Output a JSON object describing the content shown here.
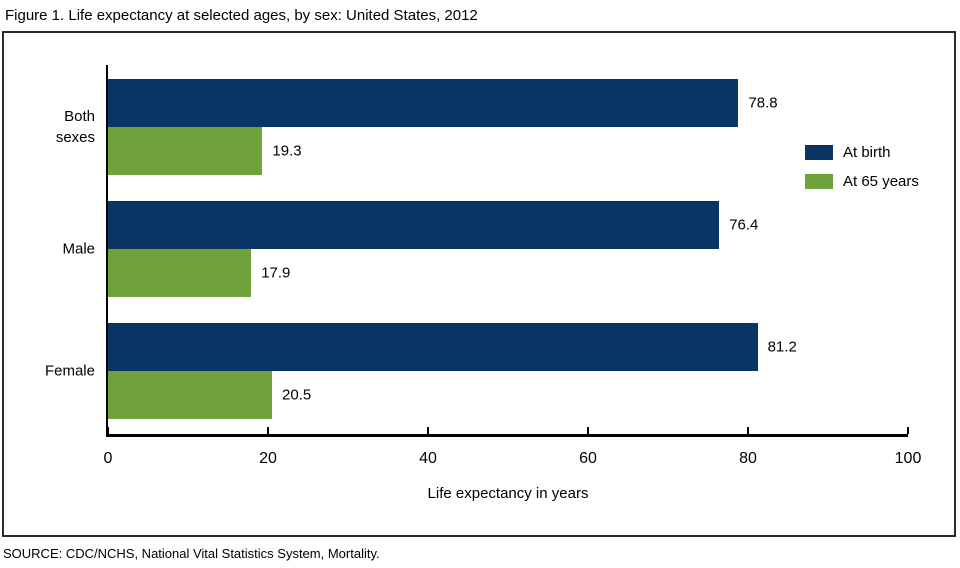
{
  "title": "Figure 1. Life expectancy at selected ages, by sex: United States, 2012",
  "source": "SOURCE: CDC/NCHS, National Vital Statistics System, Mortality.",
  "colors": {
    "at_birth": "#0a3464",
    "at_65_years": "#70a23c",
    "axis": "#000000",
    "frame_border": "#2b2b2b"
  },
  "chart_data": {
    "type": "bar",
    "orientation": "horizontal",
    "title": "Figure 1. Life expectancy at selected ages, by sex: United States, 2012",
    "categories": [
      "Both sexes",
      "Male",
      "Female"
    ],
    "series": [
      {
        "name": "At birth",
        "color": "#0a3464",
        "values": [
          78.8,
          76.4,
          81.2
        ]
      },
      {
        "name": "At 65 years",
        "color": "#70a23c",
        "values": [
          19.3,
          17.9,
          20.5
        ]
      }
    ],
    "xlabel": "Life expectancy in years",
    "ylabel": "",
    "xlim": [
      0,
      100
    ],
    "xticks": [
      0,
      20,
      40,
      60,
      80,
      100
    ],
    "grid": false,
    "legend_position": "right",
    "value_labels": [
      "78.8",
      "19.3",
      "76.4",
      "17.9",
      "81.2",
      "20.5"
    ]
  }
}
